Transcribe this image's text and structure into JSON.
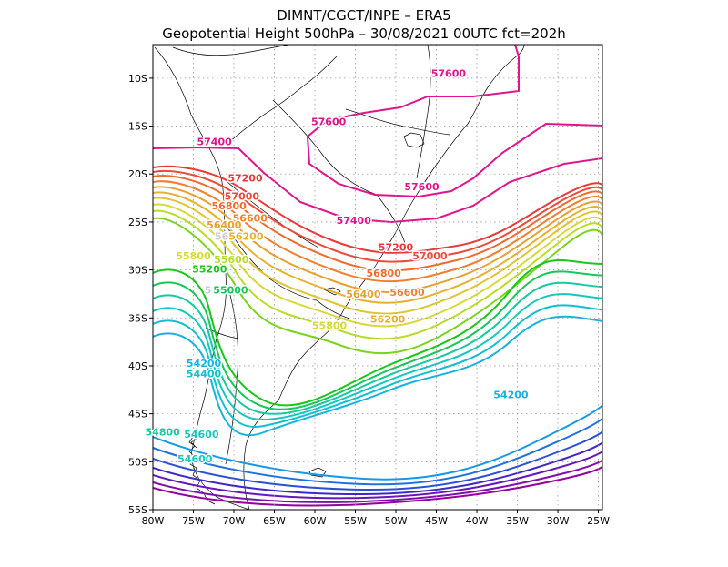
{
  "header": {
    "line1": "DIMNT/CGCT/INPE –  ERA5",
    "line2": "Geopotential Height 500hPa –  30/08/2021 00UTC fct=202h"
  },
  "axes": {
    "lat_labels": [
      "10S",
      "15S",
      "20S",
      "25S",
      "30S",
      "35S",
      "40S",
      "45S",
      "50S",
      "55S"
    ],
    "lon_labels": [
      "80W",
      "75W",
      "70W",
      "65W",
      "60W",
      "55W",
      "50W",
      "45W",
      "40W",
      "35W",
      "30W",
      "25W"
    ]
  },
  "map_data": {
    "variable": "Geopotential Height 500hPa",
    "date": "30/08/2021 00UTC",
    "forecast": "fct=202h",
    "extent": {
      "lon_min": -80,
      "lon_max": -24.5,
      "lat_min": -55,
      "lat_max": -6.5
    },
    "contour_interval": 200,
    "colors": {
      "57600": "#e0148c",
      "57400": "#e0148c",
      "57200": "#e83a3a",
      "57000": "#ec4a3a",
      "56800": "#ee6c2e",
      "56600": "#f0802e",
      "56400": "#e8a030",
      "56200": "#e8b030",
      "56000": "#e0c430",
      "55800": "#d8d83a",
      "55600": "#b8dc28",
      "55400": "#7ad41e",
      "55200": "#18c818",
      "55000": "#16c85a",
      "54800": "#18c8a0",
      "54600": "#14c8c0",
      "54400": "#10c0d0",
      "54200": "#14b4e0",
      "54000": "#1898e8",
      "53800": "#2070e0",
      "53600": "#2a50d8",
      "53400": "#4028c8",
      "53200": "#6418b8",
      "53000": "#8010a8",
      "52800": "#9400a0"
    },
    "labels": [
      {
        "text": "57600",
        "lon": -43.5,
        "lat": -9.5
      },
      {
        "text": "57600",
        "lon": -58.3,
        "lat": -14.5
      },
      {
        "text": "57600",
        "lon": -46.8,
        "lat": -21.3
      },
      {
        "text": "57400",
        "lon": -72.4,
        "lat": -16.6
      },
      {
        "text": "57400",
        "lon": -55.2,
        "lat": -24.8
      },
      {
        "text": "57200",
        "lon": -68.6,
        "lat": -20.4
      },
      {
        "text": "57200",
        "lon": -50.0,
        "lat": -27.6
      },
      {
        "text": "57000",
        "lon": -69.0,
        "lat": -22.3
      },
      {
        "text": "57000",
        "lon": -45.8,
        "lat": -28.5
      },
      {
        "text": "56800",
        "lon": -70.6,
        "lat": -23.3
      },
      {
        "text": "56800",
        "lon": -51.5,
        "lat": -30.3
      },
      {
        "text": "56600",
        "lon": -68.0,
        "lat": -24.6
      },
      {
        "text": "56600",
        "lon": -48.6,
        "lat": -32.3
      },
      {
        "text": "56400",
        "lon": -71.2,
        "lat": -25.3
      },
      {
        "text": "56400",
        "lon": -54.0,
        "lat": -32.5
      },
      {
        "text": "56200",
        "lon": -68.5,
        "lat": -26.5
      },
      {
        "text": "56200",
        "lon": -51.0,
        "lat": -35.1
      },
      {
        "text": "56",
        "lon": -71.5,
        "lat": -26.5
      },
      {
        "text": "55800",
        "lon": -75.0,
        "lat": -28.5
      },
      {
        "text": "55800",
        "lon": -58.2,
        "lat": -35.8
      },
      {
        "text": "55600",
        "lon": -70.3,
        "lat": -28.9
      },
      {
        "text": "55200",
        "lon": -73.0,
        "lat": -29.9
      },
      {
        "text": "5",
        "lon": -73.2,
        "lat": -32.1
      },
      {
        "text": "55000",
        "lon": -70.4,
        "lat": -32.1
      },
      {
        "text": "54200",
        "lon": -73.7,
        "lat": -39.7
      },
      {
        "text": "54200",
        "lon": -35.8,
        "lat": -43.0
      },
      {
        "text": "54400",
        "lon": -73.7,
        "lat": -40.8
      },
      {
        "text": "54800",
        "lon": -78.8,
        "lat": -46.9
      },
      {
        "text": "54600",
        "lon": -74.0,
        "lat": -47.1
      },
      {
        "text": "54600",
        "lon": -74.8,
        "lat": -49.7
      }
    ]
  }
}
